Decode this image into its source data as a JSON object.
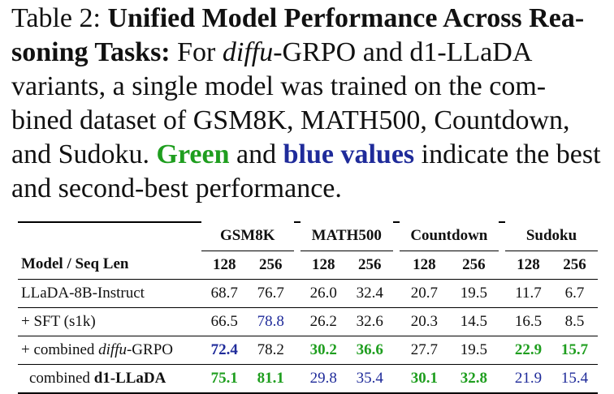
{
  "caption": {
    "prefix": "Table 2: ",
    "title": "Unified Model Performance Across Rea-soning Tasks:",
    "body1": " For ",
    "diffu": "diffu",
    "body2": "-GRPO and d1-LLaDA variants, a single model was trained on the com-bined dataset of GSM8K, MATH500, Countdown, and Sudoku. ",
    "green_word": "Green",
    "body3": " and ",
    "blue_word": "blue values",
    "body4": " indicate the best and second-best performance."
  },
  "table": {
    "groups": [
      "GSM8K",
      "MATH500",
      "Countdown",
      "Sudoku"
    ],
    "header_label": "Model / Seq Len",
    "seq_lens": [
      "128",
      "256",
      "128",
      "256",
      "128",
      "256",
      "128",
      "256"
    ],
    "rows": [
      {
        "name": "LLaDA-8B-Instruct",
        "values": [
          "68.7",
          "76.7",
          "26.0",
          "32.4",
          "20.7",
          "19.5",
          "11.7",
          "6.7"
        ]
      },
      {
        "name": "+ SFT (s1k)",
        "values": [
          "66.5",
          "78.8",
          "26.2",
          "32.6",
          "20.3",
          "14.5",
          "16.5",
          "8.5"
        ]
      },
      {
        "name_pre": "+ combined ",
        "name_it": "diffu",
        "name_post": "-GRPO",
        "values": [
          "72.4",
          "78.2",
          "30.2",
          "36.6",
          "27.7",
          "19.5",
          "22.9",
          "15.7"
        ]
      },
      {
        "name_pre": "combined ",
        "name_bold": "d1-LLaDA",
        "values": [
          "75.1",
          "81.1",
          "29.8",
          "35.4",
          "30.1",
          "32.8",
          "21.9",
          "15.4"
        ]
      }
    ]
  },
  "colors": {
    "best": "#1f9e1f",
    "second_best": "#1f2b9a"
  }
}
